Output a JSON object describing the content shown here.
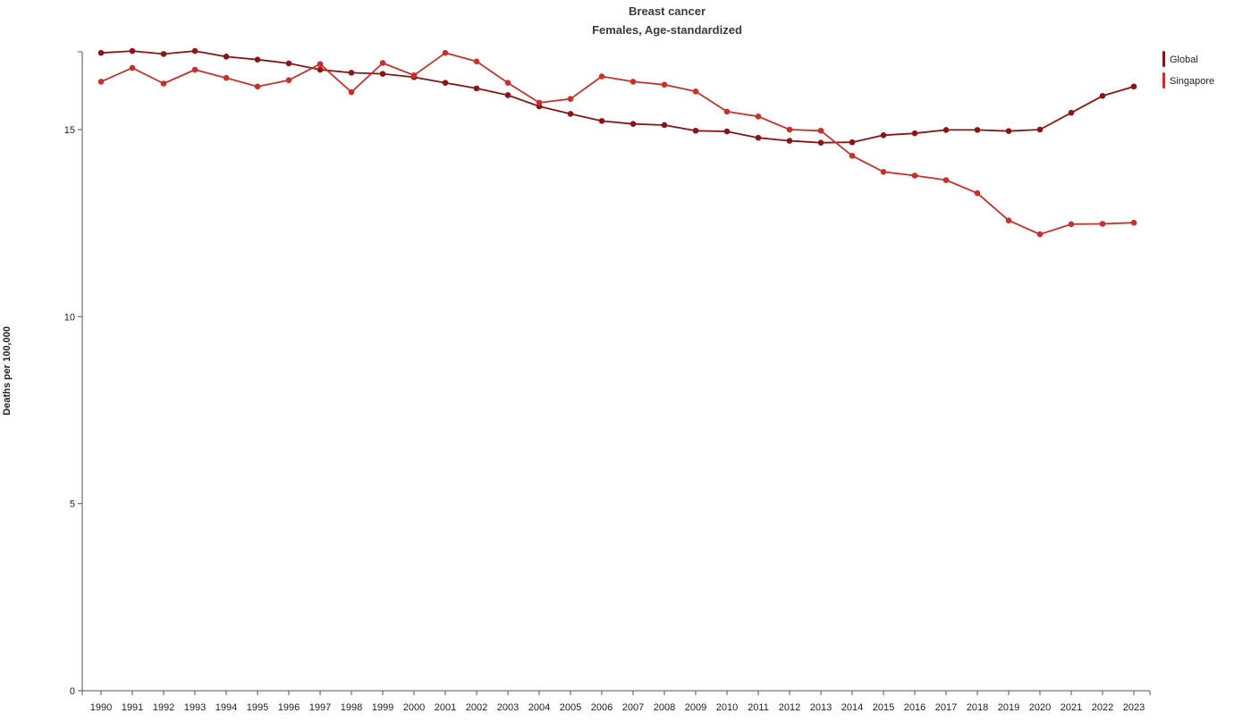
{
  "chart_data": {
    "type": "line",
    "title": "Breast cancer",
    "subtitle": "Females, Age-standardized",
    "xlabel": "",
    "ylabel": "Deaths per 100,000",
    "ylim": [
      0,
      17.5
    ],
    "yticks": [
      "0",
      "5",
      "10",
      "15"
    ],
    "ytick_values": [
      0,
      5,
      10,
      15
    ],
    "grid": false,
    "legend_position": "top-right",
    "x": [
      "1990",
      "1991",
      "1992",
      "1993",
      "1994",
      "1995",
      "1996",
      "1997",
      "1998",
      "1999",
      "2000",
      "2001",
      "2002",
      "2003",
      "2004",
      "2005",
      "2006",
      "2007",
      "2008",
      "2009",
      "2010",
      "2011",
      "2012",
      "2013",
      "2014",
      "2015",
      "2016",
      "2017",
      "2018",
      "2019",
      "2020",
      "2021",
      "2022",
      "2023"
    ],
    "series": [
      {
        "name": "Global",
        "color": "#8b1414",
        "values": [
          17.05,
          17.1,
          17.02,
          17.1,
          16.95,
          16.87,
          16.77,
          16.6,
          16.52,
          16.49,
          16.4,
          16.25,
          16.1,
          15.92,
          15.62,
          15.42,
          15.23,
          15.15,
          15.12,
          14.97,
          14.95,
          14.78,
          14.7,
          14.65,
          14.66,
          14.85,
          14.9,
          14.99,
          14.99,
          14.96,
          15.0,
          15.45,
          15.9,
          16.15
        ]
      },
      {
        "name": "Singapore",
        "color": "#c8302c",
        "values": [
          16.28,
          16.65,
          16.23,
          16.6,
          16.38,
          16.15,
          16.32,
          16.75,
          16.0,
          16.78,
          16.45,
          17.05,
          16.82,
          16.25,
          15.72,
          15.82,
          16.42,
          16.28,
          16.2,
          16.02,
          15.48,
          15.35,
          15.0,
          14.97,
          14.3,
          13.87,
          13.77,
          13.65,
          13.3,
          12.57,
          12.2,
          12.47,
          12.48,
          12.51
        ]
      }
    ]
  }
}
